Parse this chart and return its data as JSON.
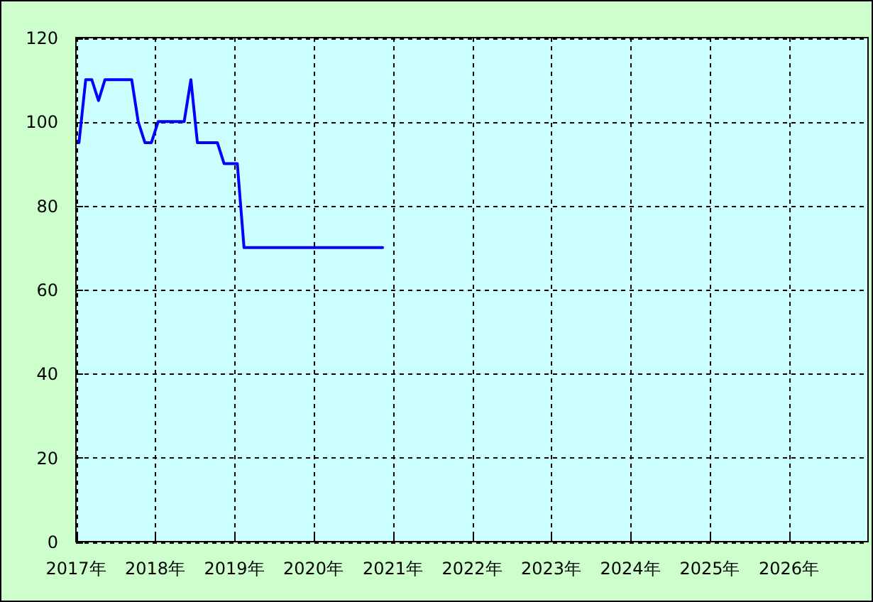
{
  "chart_data": {
    "type": "line",
    "line_style": "solid",
    "color": "#0000ff",
    "x": [
      "2017-01-15",
      "2017-02-15",
      "2017-03-15",
      "2017-04-15",
      "2017-05-15",
      "2017-06-15",
      "2017-07-15",
      "2017-08-15",
      "2017-09-15",
      "2017-10-15",
      "2017-11-15",
      "2017-12-15",
      "2018-01-15",
      "2018-02-15",
      "2018-03-15",
      "2018-04-15",
      "2018-05-15",
      "2018-06-15",
      "2018-07-15",
      "2018-08-15",
      "2018-09-15",
      "2018-10-15",
      "2018-11-15",
      "2018-12-15",
      "2019-01-15",
      "2019-02-15",
      "2019-03-15",
      "2019-04-15",
      "2019-05-15",
      "2019-06-15",
      "2019-07-15",
      "2019-08-15",
      "2019-09-15",
      "2019-10-15",
      "2019-11-15",
      "2019-12-15",
      "2020-01-15",
      "2020-02-15",
      "2020-03-15",
      "2020-04-15",
      "2020-05-15",
      "2020-06-15",
      "2020-07-15",
      "2020-08-15",
      "2020-09-15",
      "2020-10-15",
      "2020-11-15"
    ],
    "values": [
      95,
      110,
      110,
      105,
      110,
      110,
      110,
      110,
      110,
      100,
      95,
      95,
      100,
      100,
      100,
      100,
      100,
      110,
      95,
      95,
      95,
      95,
      90,
      90,
      90,
      70,
      70,
      70,
      70,
      70,
      70,
      70,
      70,
      70,
      70,
      70,
      70,
      70,
      70,
      70,
      70,
      70,
      70,
      70,
      70,
      70,
      70
    ],
    "xlim": [
      "2017",
      "2027"
    ],
    "xticks": [
      {
        "value": "2017",
        "label": "2017年"
      },
      {
        "value": "2018",
        "label": "2018年"
      },
      {
        "value": "2019",
        "label": "2019年"
      },
      {
        "value": "2020",
        "label": "2020年"
      },
      {
        "value": "2021",
        "label": "2021年"
      },
      {
        "value": "2022",
        "label": "2022年"
      },
      {
        "value": "2023",
        "label": "2023年"
      },
      {
        "value": "2024",
        "label": "2024年"
      },
      {
        "value": "2025",
        "label": "2025年"
      },
      {
        "value": "2026",
        "label": "2026年"
      }
    ],
    "ylim": [
      0,
      120
    ],
    "yticks": [
      0,
      20,
      40,
      60,
      80,
      100,
      120
    ],
    "grid": true
  }
}
